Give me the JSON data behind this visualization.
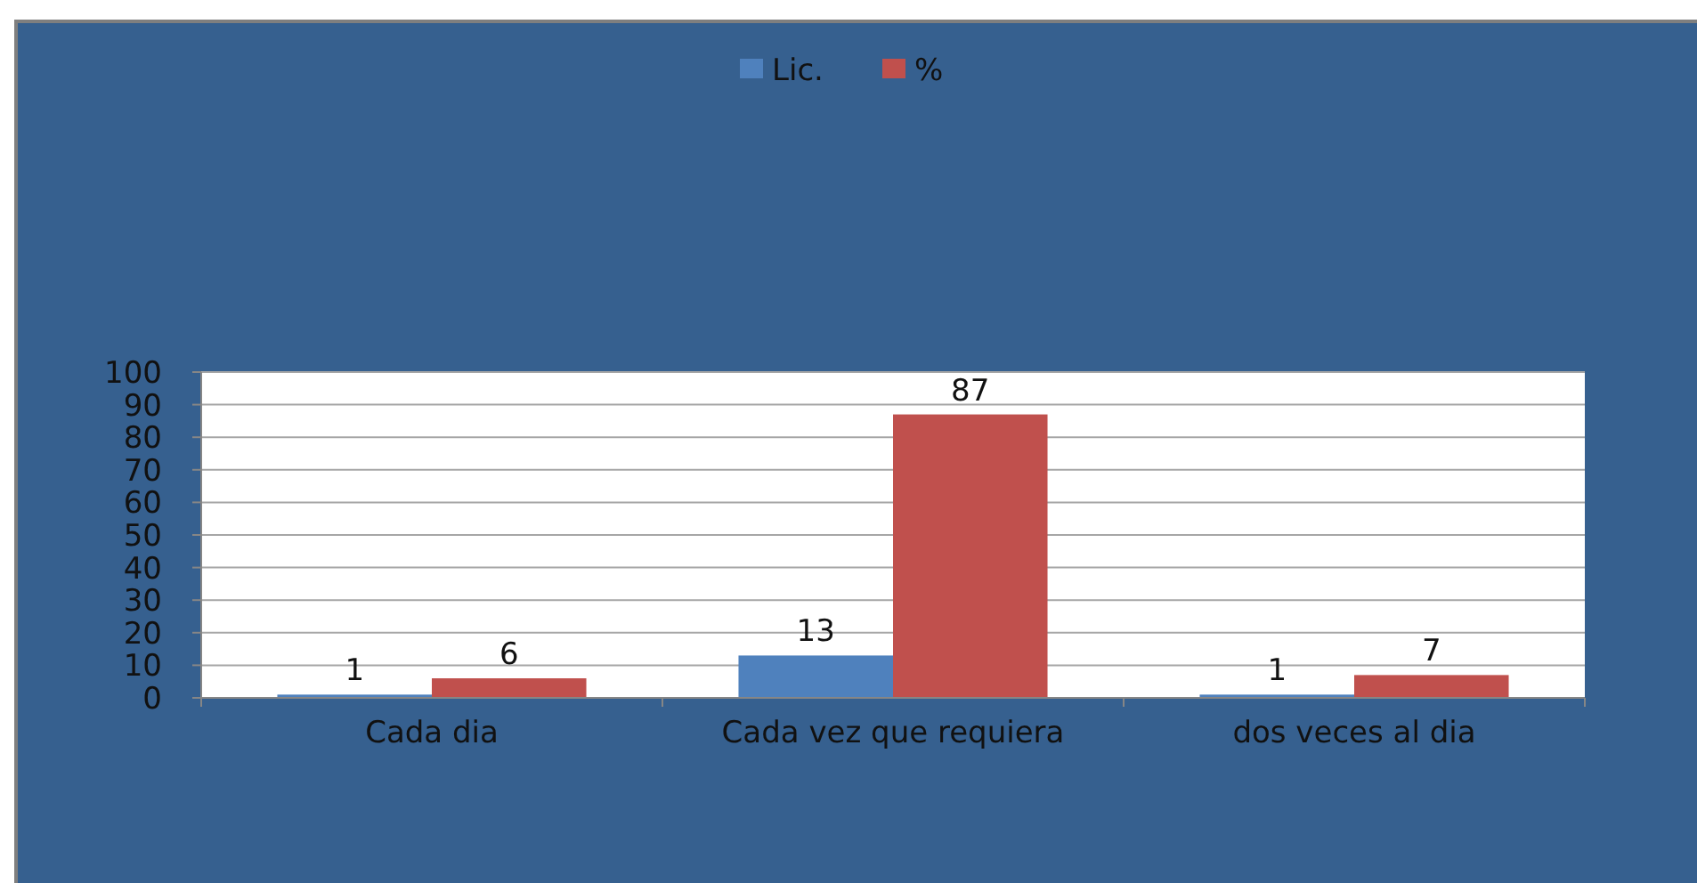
{
  "chart_data": {
    "type": "bar",
    "categories": [
      "Cada dia",
      "Cada vez que requiera",
      "dos veces al dia"
    ],
    "series": [
      {
        "name": "Lic.",
        "color": "#4f81bd",
        "values": [
          1,
          13,
          1
        ]
      },
      {
        "name": "%",
        "color": "#c0504d",
        "values": [
          6,
          87,
          7
        ]
      }
    ],
    "ylim": [
      0,
      100
    ],
    "yticks": [
      0,
      10,
      20,
      30,
      40,
      50,
      60,
      70,
      80,
      90,
      100
    ],
    "grid": "y",
    "legend": "top",
    "data_labels": true
  }
}
